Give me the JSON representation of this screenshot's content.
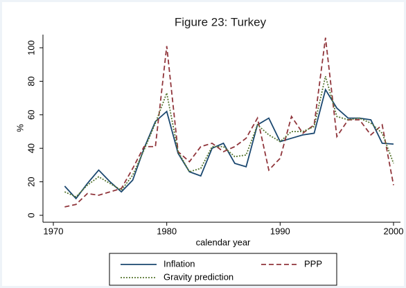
{
  "chart_data": {
    "type": "line",
    "title": "Figure 23: Turkey",
    "x_label": "calendar year",
    "y_label": "%",
    "x": [
      1971,
      1972,
      1973,
      1974,
      1975,
      1976,
      1977,
      1978,
      1979,
      1980,
      1981,
      1982,
      1983,
      1984,
      1985,
      1986,
      1987,
      1988,
      1989,
      1990,
      1991,
      1992,
      1993,
      1994,
      1995,
      1996,
      1997,
      1998,
      1999,
      2000
    ],
    "series": [
      {
        "name": "Inflation",
        "color": "#1a476f",
        "dash": "solid",
        "values": [
          17.4,
          10,
          19,
          27,
          20,
          14,
          21,
          40,
          56,
          62,
          37,
          26,
          23.5,
          40,
          43,
          31,
          29,
          54,
          58,
          44,
          46,
          48,
          49,
          75,
          64,
          58,
          58,
          57,
          43,
          42.5
        ]
      },
      {
        "name": "PPP",
        "color": "#90353b",
        "dash": "dashed",
        "values": [
          5,
          6.5,
          13,
          12,
          14,
          16,
          28,
          41,
          41,
          101,
          38,
          32,
          41,
          43,
          38,
          41,
          46,
          58,
          27,
          34,
          59,
          49,
          54,
          106,
          47,
          57,
          57,
          48,
          54,
          18
        ]
      },
      {
        "name": "Gravity prediction",
        "color": "#55752f",
        "dash": "dotted",
        "values": [
          14,
          11,
          18,
          23,
          19,
          15,
          24,
          39,
          55,
          73,
          38,
          26,
          28,
          41,
          41,
          35,
          36,
          54,
          48,
          44,
          50,
          50,
          53,
          83,
          59,
          57,
          58,
          55,
          49,
          31
        ]
      }
    ],
    "xlim": [
      1970,
      2000
    ],
    "xticks": [
      1970,
      1980,
      1990,
      2000
    ],
    "ylim": [
      0,
      100
    ],
    "yticks": [
      0,
      20,
      40,
      60,
      80,
      100
    ],
    "grid": false,
    "legend": "bottom"
  }
}
